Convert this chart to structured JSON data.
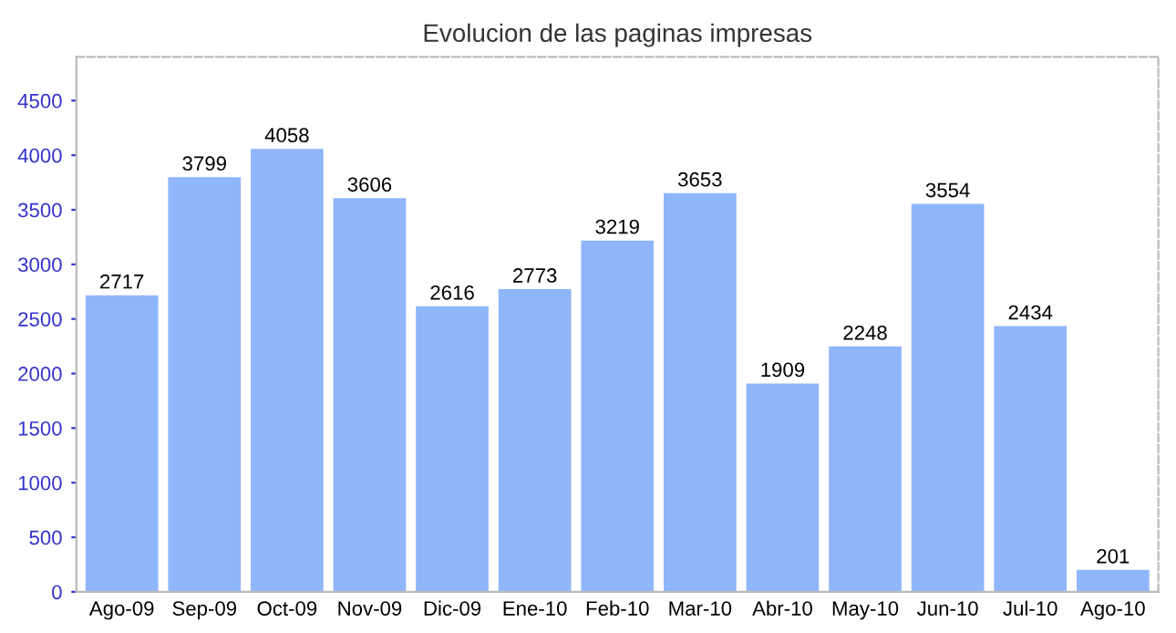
{
  "chart_data": {
    "type": "bar",
    "title": "Evolucion de las paginas impresas",
    "categories": [
      "Ago-09",
      "Sep-09",
      "Oct-09",
      "Nov-09",
      "Dic-09",
      "Ene-10",
      "Feb-10",
      "Mar-10",
      "Abr-10",
      "May-10",
      "Jun-10",
      "Jul-10",
      "Ago-10"
    ],
    "values": [
      2717,
      3799,
      4058,
      3606,
      2616,
      2773,
      3219,
      3653,
      1909,
      2248,
      3554,
      2434,
      201
    ],
    "color": "#8fb6fa",
    "ylim": [
      0,
      4900
    ],
    "yticks": [
      0,
      500,
      1000,
      1500,
      2000,
      2500,
      3000,
      3500,
      4000,
      4500
    ],
    "data_labels": true,
    "grid": false,
    "legend": false
  }
}
